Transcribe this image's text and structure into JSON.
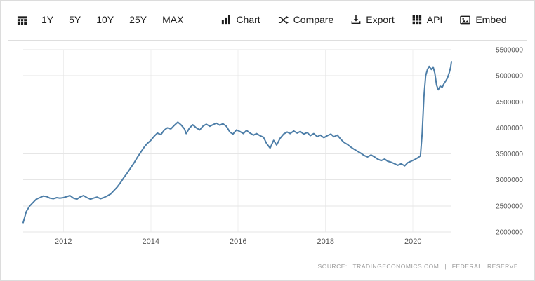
{
  "toolbar": {
    "calendar_button": {
      "icon": "calendar-icon"
    },
    "range_buttons": [
      {
        "label": "1Y"
      },
      {
        "label": "5Y"
      },
      {
        "label": "10Y"
      },
      {
        "label": "25Y"
      },
      {
        "label": "MAX"
      }
    ],
    "action_buttons": [
      {
        "label": "Chart",
        "icon": "bar-chart-icon"
      },
      {
        "label": "Compare",
        "icon": "compare-icon"
      },
      {
        "label": "Export",
        "icon": "export-icon"
      },
      {
        "label": "API",
        "icon": "api-icon"
      },
      {
        "label": "Embed",
        "icon": "embed-icon"
      }
    ]
  },
  "chart_data": {
    "type": "line",
    "title": "",
    "xlabel": "",
    "ylabel": "",
    "grid": true,
    "x_range": [
      2011.08,
      2020.88
    ],
    "y_range": [
      2000000,
      5500000
    ],
    "x_ticks": [
      2012,
      2014,
      2016,
      2018,
      2020
    ],
    "y_ticks": [
      2000000,
      2500000,
      3000000,
      3500000,
      4000000,
      4500000,
      5000000,
      5500000
    ],
    "source": "SOURCE: TRADINGECONOMICS.COM | FEDERAL RESERVE",
    "series": [
      {
        "name": "Federal Reserve",
        "color": "#4d7ea8",
        "points": [
          [
            2011.08,
            2180000
          ],
          [
            2011.15,
            2390000
          ],
          [
            2011.23,
            2500000
          ],
          [
            2011.31,
            2570000
          ],
          [
            2011.38,
            2630000
          ],
          [
            2011.46,
            2660000
          ],
          [
            2011.54,
            2690000
          ],
          [
            2011.62,
            2680000
          ],
          [
            2011.69,
            2650000
          ],
          [
            2011.77,
            2640000
          ],
          [
            2011.85,
            2660000
          ],
          [
            2011.92,
            2650000
          ],
          [
            2012.0,
            2660000
          ],
          [
            2012.08,
            2680000
          ],
          [
            2012.15,
            2700000
          ],
          [
            2012.23,
            2650000
          ],
          [
            2012.31,
            2630000
          ],
          [
            2012.38,
            2670000
          ],
          [
            2012.46,
            2700000
          ],
          [
            2012.54,
            2660000
          ],
          [
            2012.62,
            2630000
          ],
          [
            2012.69,
            2650000
          ],
          [
            2012.77,
            2670000
          ],
          [
            2012.85,
            2640000
          ],
          [
            2012.92,
            2660000
          ],
          [
            2013.0,
            2690000
          ],
          [
            2013.08,
            2730000
          ],
          [
            2013.15,
            2790000
          ],
          [
            2013.23,
            2860000
          ],
          [
            2013.31,
            2950000
          ],
          [
            2013.38,
            3040000
          ],
          [
            2013.46,
            3130000
          ],
          [
            2013.54,
            3230000
          ],
          [
            2013.62,
            3330000
          ],
          [
            2013.69,
            3430000
          ],
          [
            2013.77,
            3530000
          ],
          [
            2013.85,
            3630000
          ],
          [
            2013.92,
            3700000
          ],
          [
            2014.0,
            3760000
          ],
          [
            2014.08,
            3840000
          ],
          [
            2014.15,
            3900000
          ],
          [
            2014.23,
            3870000
          ],
          [
            2014.31,
            3960000
          ],
          [
            2014.38,
            4000000
          ],
          [
            2014.46,
            3980000
          ],
          [
            2014.54,
            4050000
          ],
          [
            2014.62,
            4110000
          ],
          [
            2014.69,
            4060000
          ],
          [
            2014.77,
            3980000
          ],
          [
            2014.81,
            3890000
          ],
          [
            2014.88,
            3990000
          ],
          [
            2014.96,
            4060000
          ],
          [
            2015.04,
            4000000
          ],
          [
            2015.12,
            3960000
          ],
          [
            2015.19,
            4030000
          ],
          [
            2015.27,
            4070000
          ],
          [
            2015.35,
            4030000
          ],
          [
            2015.42,
            4060000
          ],
          [
            2015.5,
            4090000
          ],
          [
            2015.58,
            4050000
          ],
          [
            2015.65,
            4080000
          ],
          [
            2015.73,
            4030000
          ],
          [
            2015.81,
            3920000
          ],
          [
            2015.88,
            3880000
          ],
          [
            2015.96,
            3960000
          ],
          [
            2016.04,
            3930000
          ],
          [
            2016.12,
            3890000
          ],
          [
            2016.19,
            3950000
          ],
          [
            2016.27,
            3900000
          ],
          [
            2016.35,
            3860000
          ],
          [
            2016.42,
            3890000
          ],
          [
            2016.5,
            3850000
          ],
          [
            2016.58,
            3820000
          ],
          [
            2016.65,
            3700000
          ],
          [
            2016.73,
            3610000
          ],
          [
            2016.81,
            3760000
          ],
          [
            2016.88,
            3670000
          ],
          [
            2016.96,
            3800000
          ],
          [
            2017.04,
            3880000
          ],
          [
            2017.12,
            3920000
          ],
          [
            2017.19,
            3890000
          ],
          [
            2017.27,
            3940000
          ],
          [
            2017.35,
            3900000
          ],
          [
            2017.42,
            3930000
          ],
          [
            2017.5,
            3880000
          ],
          [
            2017.58,
            3910000
          ],
          [
            2017.65,
            3850000
          ],
          [
            2017.73,
            3890000
          ],
          [
            2017.81,
            3830000
          ],
          [
            2017.88,
            3860000
          ],
          [
            2017.96,
            3810000
          ],
          [
            2018.04,
            3850000
          ],
          [
            2018.12,
            3880000
          ],
          [
            2018.19,
            3830000
          ],
          [
            2018.27,
            3860000
          ],
          [
            2018.35,
            3780000
          ],
          [
            2018.42,
            3720000
          ],
          [
            2018.5,
            3680000
          ],
          [
            2018.58,
            3630000
          ],
          [
            2018.65,
            3590000
          ],
          [
            2018.73,
            3550000
          ],
          [
            2018.81,
            3510000
          ],
          [
            2018.88,
            3470000
          ],
          [
            2018.96,
            3440000
          ],
          [
            2019.04,
            3480000
          ],
          [
            2019.12,
            3440000
          ],
          [
            2019.19,
            3400000
          ],
          [
            2019.27,
            3370000
          ],
          [
            2019.35,
            3400000
          ],
          [
            2019.42,
            3360000
          ],
          [
            2019.5,
            3340000
          ],
          [
            2019.58,
            3310000
          ],
          [
            2019.65,
            3280000
          ],
          [
            2019.73,
            3310000
          ],
          [
            2019.81,
            3270000
          ],
          [
            2019.88,
            3330000
          ],
          [
            2019.96,
            3360000
          ],
          [
            2020.04,
            3390000
          ],
          [
            2020.12,
            3430000
          ],
          [
            2020.17,
            3460000
          ],
          [
            2020.21,
            3900000
          ],
          [
            2020.25,
            4600000
          ],
          [
            2020.29,
            5000000
          ],
          [
            2020.33,
            5120000
          ],
          [
            2020.37,
            5180000
          ],
          [
            2020.42,
            5120000
          ],
          [
            2020.46,
            5170000
          ],
          [
            2020.5,
            5050000
          ],
          [
            2020.54,
            4820000
          ],
          [
            2020.58,
            4730000
          ],
          [
            2020.62,
            4800000
          ],
          [
            2020.67,
            4780000
          ],
          [
            2020.71,
            4850000
          ],
          [
            2020.75,
            4900000
          ],
          [
            2020.79,
            4960000
          ],
          [
            2020.83,
            5060000
          ],
          [
            2020.86,
            5160000
          ],
          [
            2020.88,
            5270000
          ]
        ]
      }
    ]
  }
}
